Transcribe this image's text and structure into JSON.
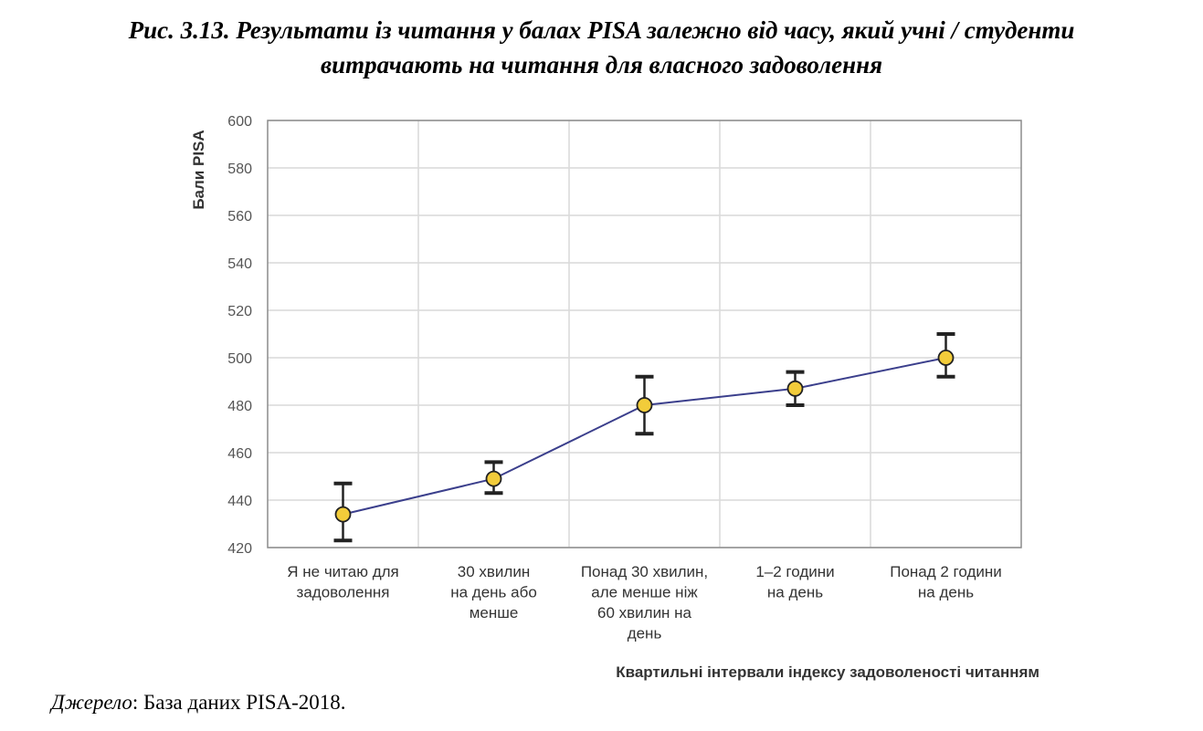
{
  "figure": {
    "title_line1": "Рис. 3.13. Результати із читання у балах PISA залежно від часу, який учні / студенти",
    "title_line2": "витрачають на читання для власного задоволення",
    "source_label": "Джерело",
    "source_text": ": База даних PISA-2018."
  },
  "chart_data": {
    "type": "line",
    "xlabel": "Квартильні інтервали індексу задоволеності читанням",
    "ylabel": "Бали PISA",
    "ylim": [
      420,
      600
    ],
    "yticks": [
      420,
      440,
      460,
      480,
      500,
      520,
      540,
      560,
      580,
      600
    ],
    "grid": true,
    "categories": [
      [
        "Я не читаю для",
        "задоволення"
      ],
      [
        "30 хвилин",
        "на день або",
        "менше"
      ],
      [
        "Понад 30 хвилин,",
        "але менше ніж",
        "60 хвилин  на",
        "день"
      ],
      [
        "1–2 години",
        "на день"
      ],
      [
        "Понад 2 години",
        "на день"
      ]
    ],
    "values": [
      434,
      449,
      480,
      487,
      500
    ],
    "error_low": [
      423,
      443,
      468,
      480,
      492
    ],
    "error_high": [
      447,
      456,
      492,
      494,
      510
    ],
    "colors": {
      "line": "#3b3f8c",
      "marker": "#f2cc3a",
      "marker_edge": "#222222",
      "error_bar": "#222222",
      "grid": "#d9d9d9"
    }
  }
}
